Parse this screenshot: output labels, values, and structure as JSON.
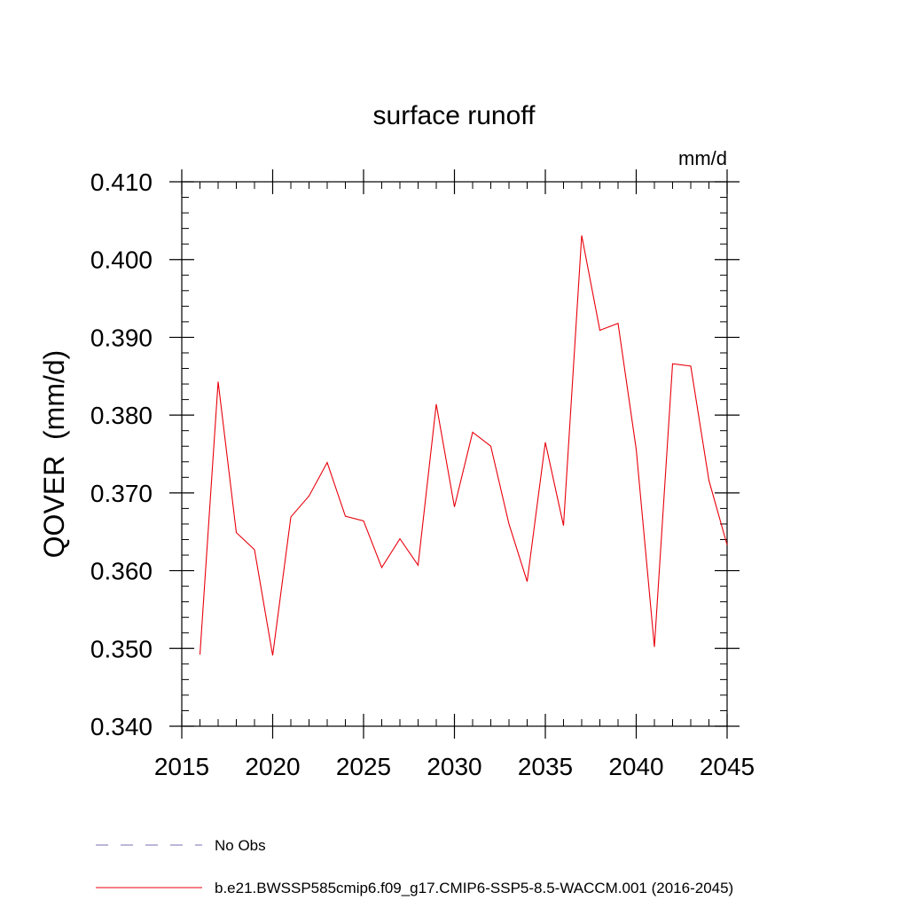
{
  "chart_data": {
    "type": "line",
    "title": "surface runoff",
    "units_label": "mm/d",
    "ylabel": "QOVER  (mm/d)",
    "xlabel": "",
    "xlim": [
      2015,
      2045
    ],
    "ylim": [
      0.34,
      0.41
    ],
    "x_ticks": [
      2015,
      2020,
      2025,
      2030,
      2035,
      2040,
      2045
    ],
    "x_tick_labels": [
      "2015",
      "2020",
      "2025",
      "2030",
      "2035",
      "2040",
      "2045"
    ],
    "y_ticks": [
      0.34,
      0.35,
      0.36,
      0.37,
      0.38,
      0.39,
      0.4,
      0.41
    ],
    "y_tick_labels": [
      "0.340",
      "0.350",
      "0.360",
      "0.370",
      "0.380",
      "0.390",
      "0.400",
      "0.410"
    ],
    "grid": false,
    "series": [
      {
        "name": "b.e21.BWSSP585cmip6.f09_g17.CMIP6-SSP5-8.5-WACCM.001 (2016-2045)",
        "color": "#e8000b",
        "style": "solid",
        "x": [
          2016,
          2017,
          2018,
          2019,
          2020,
          2021,
          2022,
          2023,
          2024,
          2025,
          2026,
          2027,
          2028,
          2029,
          2030,
          2031,
          2032,
          2033,
          2034,
          2035,
          2036,
          2037,
          2038,
          2039,
          2040,
          2041,
          2042,
          2043,
          2044,
          2045
        ],
        "y": [
          0.3492,
          0.3843,
          0.3649,
          0.3627,
          0.3491,
          0.3669,
          0.3696,
          0.3739,
          0.367,
          0.3664,
          0.3604,
          0.3641,
          0.3607,
          0.3814,
          0.3682,
          0.3778,
          0.376,
          0.366,
          0.3586,
          0.3765,
          0.3658,
          0.4031,
          0.3909,
          0.3918,
          0.3756,
          0.3502,
          0.3866,
          0.3863,
          0.3716,
          0.3633
        ]
      }
    ],
    "legend": [
      {
        "label": "No Obs",
        "color": "#7b6fb0",
        "style": "dashed"
      },
      {
        "label": "b.e21.BWSSP585cmip6.f09_g17.CMIP6-SSP5-8.5-WACCM.001 (2016-2045)",
        "color": "#e8000b",
        "style": "solid"
      }
    ],
    "legend_position": "bottom-left"
  }
}
